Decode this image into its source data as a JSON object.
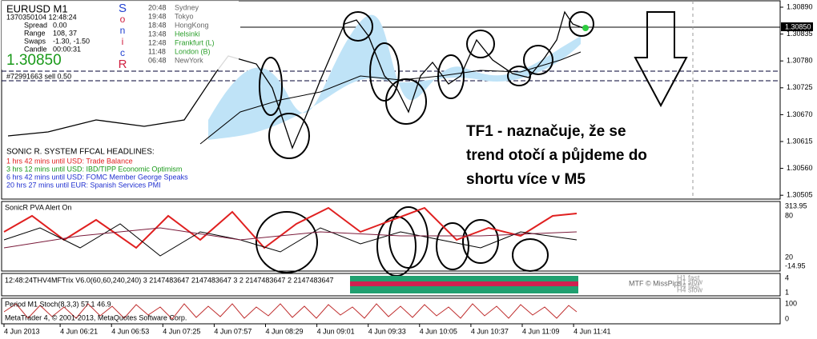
{
  "header": {
    "symbol": "EURUSD  M1",
    "timestamp": "1370350104 12:48:24",
    "info": [
      {
        "label": "Spread",
        "value": "0.00"
      },
      {
        "label": "Range",
        "value": "108, 37"
      },
      {
        "label": "Swaps",
        "value": "-1.30, -1.50"
      },
      {
        "label": "Candle",
        "value": "00:00:31"
      }
    ],
    "price": "1.30850",
    "sonic": [
      "S",
      "o",
      "n",
      "i",
      "c",
      "R"
    ]
  },
  "sessions": [
    {
      "time": "20:48",
      "name": "Sydney",
      "color": "#666666"
    },
    {
      "time": "19:48",
      "name": "Tokyo",
      "color": "#666666"
    },
    {
      "time": "18:48",
      "name": "HongKong",
      "color": "#666666"
    },
    {
      "time": "13:48",
      "name": "Helsinki",
      "color": "#2ca02c"
    },
    {
      "time": "12:48",
      "name": "Frankfurt  (L)",
      "color": "#2ca02c"
    },
    {
      "time": "11:48",
      "name": "London  (B)",
      "color": "#2ca02c"
    },
    {
      "time": "06:48",
      "name": "NewYork",
      "color": "#666666"
    }
  ],
  "order": "#72991663 sell 0.50",
  "headlines": {
    "title": "SONIC R. SYSTEM   FFCAL HEADLINES:",
    "lines": [
      {
        "text": "1 hrs 42 mins until USD: Trade Balance",
        "color": "#e02020"
      },
      {
        "text": "3 hrs 12 mins until USD: IBD/TIPP Economic Optimism",
        "color": "#1a9a1a"
      },
      {
        "text": "6 hrs 42 mins until USD: FOMC Member George Speaks",
        "color": "#2030d0"
      },
      {
        "text": "20 hrs 27 mins until EUR: Spanish Services PMI",
        "color": "#2030d0"
      }
    ]
  },
  "annotation": [
    "TF1 - naznačuje, že se",
    "trend otočí a půjdeme do",
    "shortu více v M5"
  ],
  "price_axis": {
    "labels": [
      "1.30890",
      "1.30835",
      "1.30780",
      "1.30725",
      "1.30670",
      "1.30615",
      "1.30560",
      "1.30505"
    ],
    "current": "1.30850"
  },
  "pva": {
    "title": "SonicR PVA   Alert On",
    "axis": [
      "313.95",
      "80",
      "20",
      "-14.95"
    ]
  },
  "trix": {
    "title": "12:48:24THV4MFTrix V6.0(60,60,240,240) 3 2147483647 2147483647 3 2 2147483647 2 2147483647",
    "credit": "MTF © MissPips",
    "lines": [
      "H1 fast",
      "H1 slow",
      "H4 fast",
      "H4 slow"
    ],
    "axis": [
      "4",
      "1"
    ]
  },
  "stoch": {
    "title": "Period M1 Stoch(8,3,3) 57.1 46.9",
    "footer": "MetaTrader 4, © 2001-2013, MetaQuotes Software Corp.",
    "axis": [
      "100",
      "0"
    ]
  },
  "time_axis": [
    "4 Jun 2013",
    "4 Jun 06:21",
    "4 Jun 06:53",
    "4 Jun 07:25",
    "4 Jun 07:57",
    "4 Jun 08:29",
    "4 Jun 09:01",
    "4 Jun 09:33",
    "4 Jun 10:05",
    "4 Jun 10:37",
    "4 Jun 11:09",
    "4 Jun 11:41"
  ]
}
